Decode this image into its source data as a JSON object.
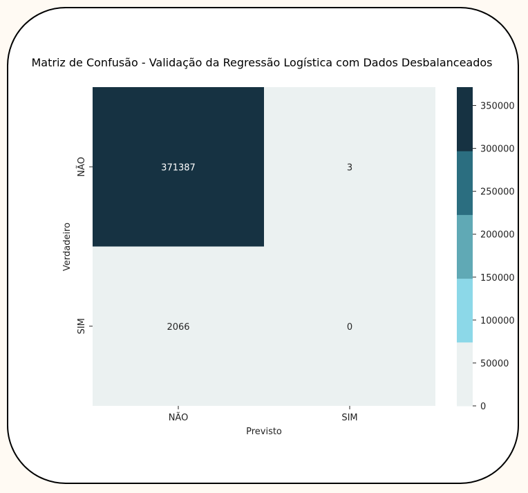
{
  "chart_data": {
    "type": "heatmap",
    "title": "Matriz de Confusão - Validação da Regressão Logística com Dados Desbalanceados",
    "xlabel": "Previsto",
    "ylabel": "Verdadeiro",
    "x_categories": [
      "NÃO",
      "SIM"
    ],
    "y_categories": [
      "NÃO",
      "SIM"
    ],
    "values": [
      [
        371387,
        3
      ],
      [
        2066,
        0
      ]
    ],
    "colorbar": {
      "range": [
        0,
        371387
      ],
      "ticks": [
        0,
        50000,
        100000,
        150000,
        200000,
        250000,
        300000,
        350000
      ],
      "colors": [
        "#ebf1f1",
        "#8cd8e8",
        "#60a9b5",
        "#2b6e80",
        "#163242"
      ]
    }
  }
}
